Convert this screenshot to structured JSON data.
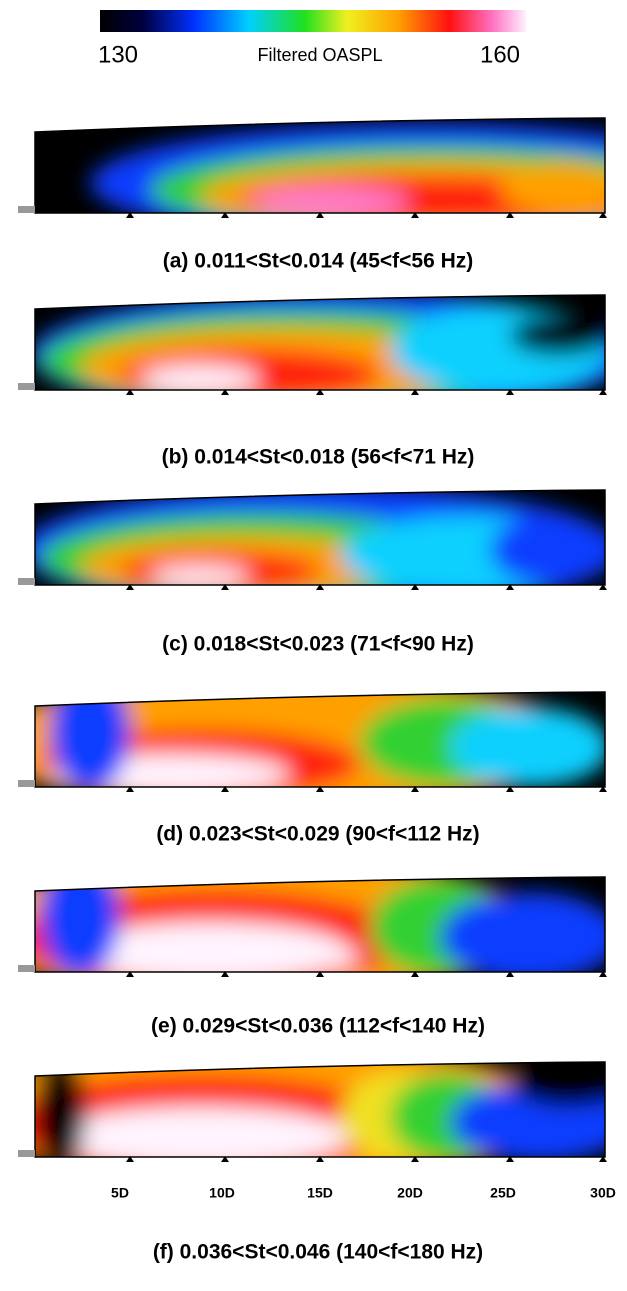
{
  "colorbar": {
    "min": "130",
    "label": "Filtered OASPL",
    "max": "160"
  },
  "panels": [
    {
      "caption": "(a) 0.011<St<0.014 (45<f<56 Hz)"
    },
    {
      "caption": "(b) 0.014<St<0.018 (56<f<71 Hz)"
    },
    {
      "caption": "(c) 0.018<St<0.023 (71<f<90 Hz)"
    },
    {
      "caption": "(d) 0.023<St<0.029 (90<f<112 Hz)"
    },
    {
      "caption": "(e) 0.029<St<0.036 (112<f<140 Hz)"
    },
    {
      "caption": "(f) 0.036<St<0.046 (140<f<180 Hz)"
    }
  ],
  "x_tick_labels": [
    "5D",
    "10D",
    "15D",
    "20D",
    "25D",
    "30D"
  ]
}
